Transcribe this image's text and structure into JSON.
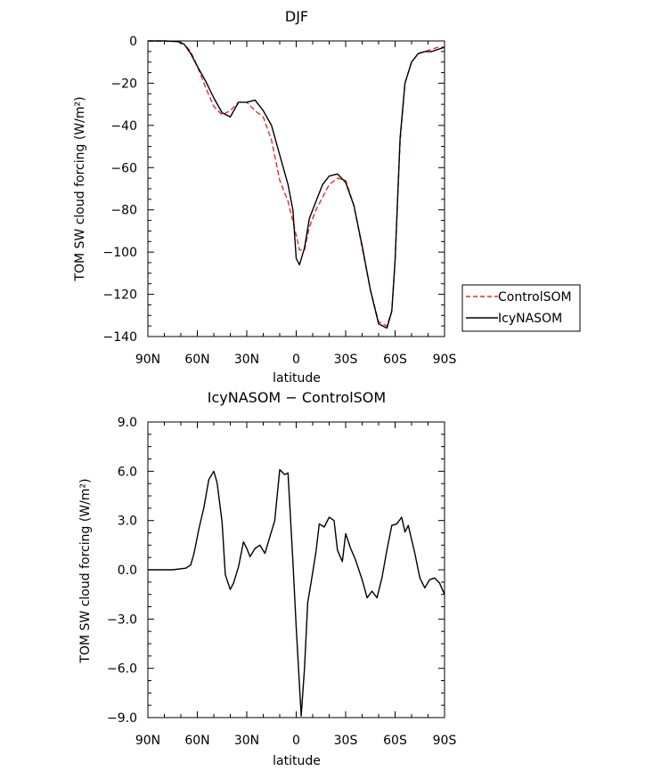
{
  "chart_data": [
    {
      "type": "line",
      "title": "DJF",
      "xlabel": "latitude",
      "ylabel": "TOM SW cloud forcing (W/m²)",
      "xlim": [
        90,
        -90
      ],
      "ylim": [
        -140,
        0
      ],
      "x_ticks": [
        90,
        60,
        30,
        0,
        -30,
        -60,
        -90
      ],
      "x_tick_labels": [
        "90N",
        "60N",
        "30N",
        "0",
        "30S",
        "60S",
        "90S"
      ],
      "y_ticks": [
        0,
        -20,
        -40,
        -60,
        -80,
        -100,
        -120,
        -140
      ],
      "y_tick_labels": [
        "0",
        "−20",
        "−40",
        "−60",
        "−80",
        "−100",
        "−120",
        "−140"
      ],
      "legend_position": "right-bottom",
      "series": [
        {
          "name": "ControlSOM",
          "color": "#e0302b",
          "style": "dashed",
          "x": [
            90,
            80,
            72,
            68,
            64,
            60,
            55,
            50,
            45,
            40,
            35,
            30,
            25,
            20,
            15,
            10,
            5,
            0,
            -2,
            -5,
            -8,
            -12,
            -16,
            -20,
            -25,
            -30,
            -35,
            -40,
            -45,
            -50,
            -55,
            -58,
            -60,
            -63,
            -66,
            -70,
            -74,
            -78,
            -82,
            -86,
            -90
          ],
          "values": [
            0,
            0,
            -0.3,
            -1.5,
            -5,
            -12,
            -22,
            -31,
            -35,
            -33,
            -29,
            -29,
            -33,
            -36,
            -47,
            -66,
            -76,
            -92,
            -99,
            -99,
            -88,
            -80,
            -74,
            -68,
            -65,
            -66,
            -78,
            -98,
            -118,
            -133,
            -135,
            -128,
            -104,
            -48,
            -20,
            -10,
            -6,
            -5,
            -4,
            -3,
            -3
          ]
        },
        {
          "name": "IcyNASOM",
          "color": "#000000",
          "style": "solid",
          "x": [
            90,
            80,
            72,
            68,
            64,
            60,
            55,
            50,
            45,
            40,
            35,
            30,
            25,
            20,
            15,
            10,
            5,
            2,
            0,
            -2,
            -5,
            -8,
            -12,
            -16,
            -20,
            -25,
            -30,
            -35,
            -40,
            -45,
            -50,
            -55,
            -58,
            -60,
            -63,
            -66,
            -70,
            -74,
            -78,
            -82,
            -86,
            -90
          ],
          "values": [
            0,
            0,
            -0.3,
            -1.5,
            -6,
            -12,
            -19,
            -27,
            -34,
            -36,
            -29,
            -29,
            -28,
            -33,
            -40,
            -54,
            -68,
            -80,
            -103,
            -106,
            -98,
            -84,
            -76,
            -68,
            -64,
            -63,
            -67,
            -78,
            -97,
            -118,
            -134,
            -136,
            -128,
            -104,
            -46,
            -20,
            -10,
            -6,
            -5,
            -5,
            -4,
            -3
          ]
        }
      ]
    },
    {
      "type": "line",
      "title": "IcyNASOM − ControlSOM",
      "xlabel": "latitude",
      "ylabel": "TOM SW cloud forcing (W/m²)",
      "xlim": [
        90,
        -90
      ],
      "ylim": [
        -9,
        9
      ],
      "x_ticks": [
        90,
        60,
        30,
        0,
        -30,
        -60,
        -90
      ],
      "x_tick_labels": [
        "90N",
        "60N",
        "30N",
        "0",
        "30S",
        "60S",
        "90S"
      ],
      "y_ticks": [
        9,
        6,
        3,
        0,
        -3,
        -6,
        -9
      ],
      "y_tick_labels": [
        "9.0",
        "6.0",
        "3.0",
        "0.0",
        "−3.0",
        "−6.0",
        "−9.0"
      ],
      "series": [
        {
          "color": "#000000",
          "style": "solid",
          "x": [
            90,
            75,
            67,
            64,
            62,
            59,
            56,
            53,
            50,
            48,
            45,
            43,
            40,
            38,
            35,
            32,
            30,
            28,
            25,
            22,
            19,
            16,
            13,
            10,
            7,
            5,
            2,
            0,
            -3,
            -5,
            -7,
            -9,
            -12,
            -14,
            -17,
            -20,
            -23,
            -25,
            -28,
            -30,
            -33,
            -36,
            -40,
            -43,
            -46,
            -49,
            -52,
            -55,
            -58,
            -61,
            -64,
            -66,
            -68,
            -72,
            -75,
            -78,
            -81,
            -84,
            -87,
            -90
          ],
          "values": [
            0,
            0,
            0.1,
            0.3,
            1,
            2.5,
            3.8,
            5.5,
            6.0,
            5.3,
            2.9,
            -0.3,
            -1.2,
            -0.8,
            0.2,
            1.7,
            1.3,
            0.8,
            1.3,
            1.5,
            1.0,
            2.0,
            3.0,
            6.1,
            5.8,
            5.9,
            0.5,
            -3.5,
            -8.9,
            -6,
            -2,
            -0.8,
            1.1,
            2.8,
            2.6,
            3.2,
            3.0,
            1.2,
            0.5,
            2.2,
            1.3,
            0.6,
            -0.6,
            -1.7,
            -1.3,
            -1.7,
            -0.5,
            1.2,
            2.7,
            2.8,
            3.2,
            2.3,
            2.7,
            1.0,
            -0.5,
            -1.1,
            -0.6,
            -0.5,
            -0.8,
            -1.5
          ]
        }
      ]
    }
  ],
  "legend": {
    "items": [
      {
        "label": "ControlSOM",
        "color": "#e0302b",
        "style": "dashed"
      },
      {
        "label": "IcyNASOM",
        "color": "#000000",
        "style": "solid"
      }
    ]
  }
}
